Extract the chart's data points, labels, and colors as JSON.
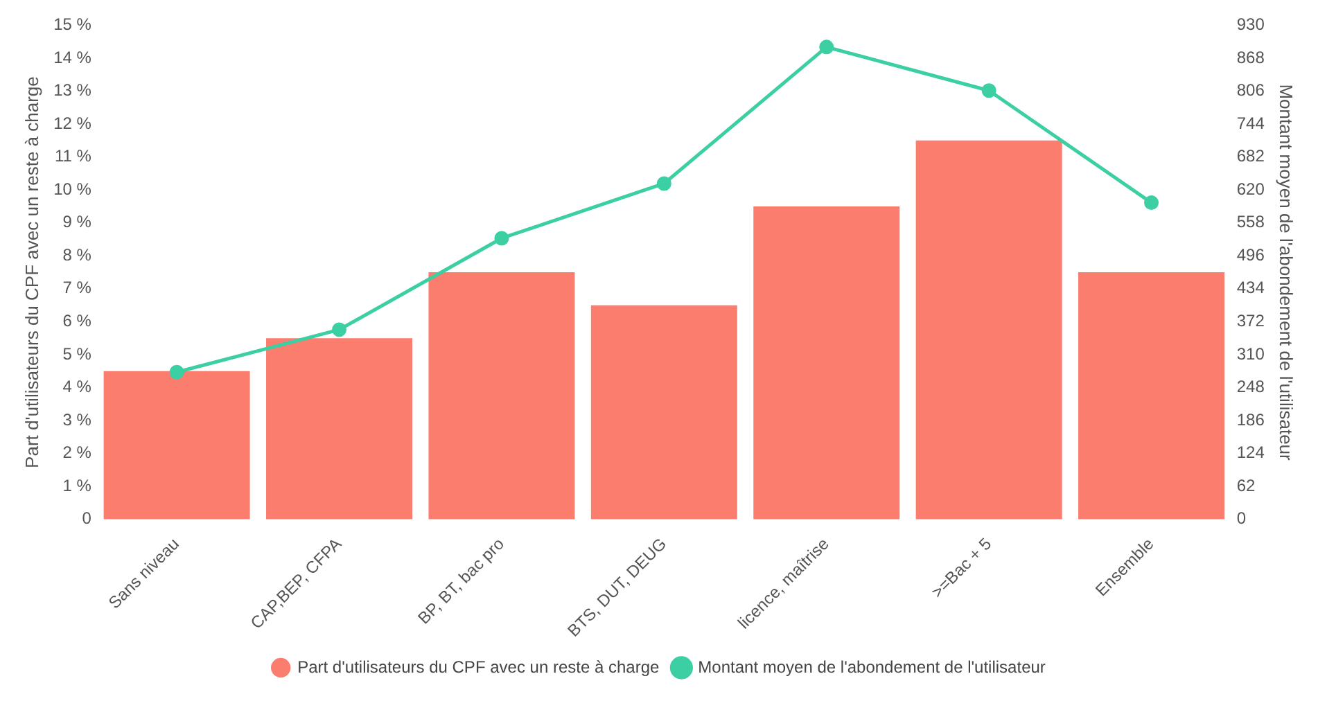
{
  "chart_data": {
    "type": "bar",
    "categories": [
      "Sans niveau",
      "CAP,BEP, CFPA",
      "BP, BT, bac pro",
      "BTS, DUT, DEUG",
      "licence, maîtrise",
      ">=Bac + 5",
      "Ensemble"
    ],
    "series": [
      {
        "name": "Part d'utilisateurs du CPF avec un reste à charge",
        "color": "#fa7d6e",
        "values": [
          4.5,
          5.5,
          7.5,
          6.5,
          9.5,
          11.5,
          7.5
        ]
      },
      {
        "name": "Montant moyen de l'abondement de l'utilisateur",
        "type": "line",
        "axis": "y2",
        "color": "#3ccfa3",
        "values": [
          277,
          357,
          529,
          632,
          889,
          807,
          596
        ]
      }
    ],
    "ylabel": "Part d'utilisateurs du CPF avec un reste à charge",
    "y2label": "Montant moyen de l'abondement de l'utilisateur",
    "ylim": [
      0,
      15
    ],
    "yticks": [
      0,
      {
        "value": 1,
        "label": "1 %"
      },
      {
        "value": 2,
        "label": "2 %"
      },
      {
        "value": 3,
        "label": "3 %"
      },
      {
        "value": 4,
        "label": "4 %"
      },
      {
        "value": 5,
        "label": "5 %"
      },
      {
        "value": 6,
        "label": "6 %"
      },
      {
        "value": 7,
        "label": "7 %"
      },
      {
        "value": 8,
        "label": "8 %"
      },
      {
        "value": 9,
        "label": "9 %"
      },
      {
        "value": 10,
        "label": "10 %"
      },
      {
        "value": 11,
        "label": "11 %"
      },
      {
        "value": 12,
        "label": "12 %"
      },
      {
        "value": 13,
        "label": "13 %"
      },
      {
        "value": 14,
        "label": "14 %"
      },
      {
        "value": 15,
        "label": "15 %"
      }
    ],
    "y2lim": [
      0,
      930
    ],
    "y2ticks": [
      0,
      62,
      124,
      186,
      248,
      310,
      372,
      434,
      496,
      558,
      620,
      682,
      744,
      806,
      868,
      930
    ],
    "grid": false,
    "legend": "bottom",
    "marker": "circle"
  }
}
